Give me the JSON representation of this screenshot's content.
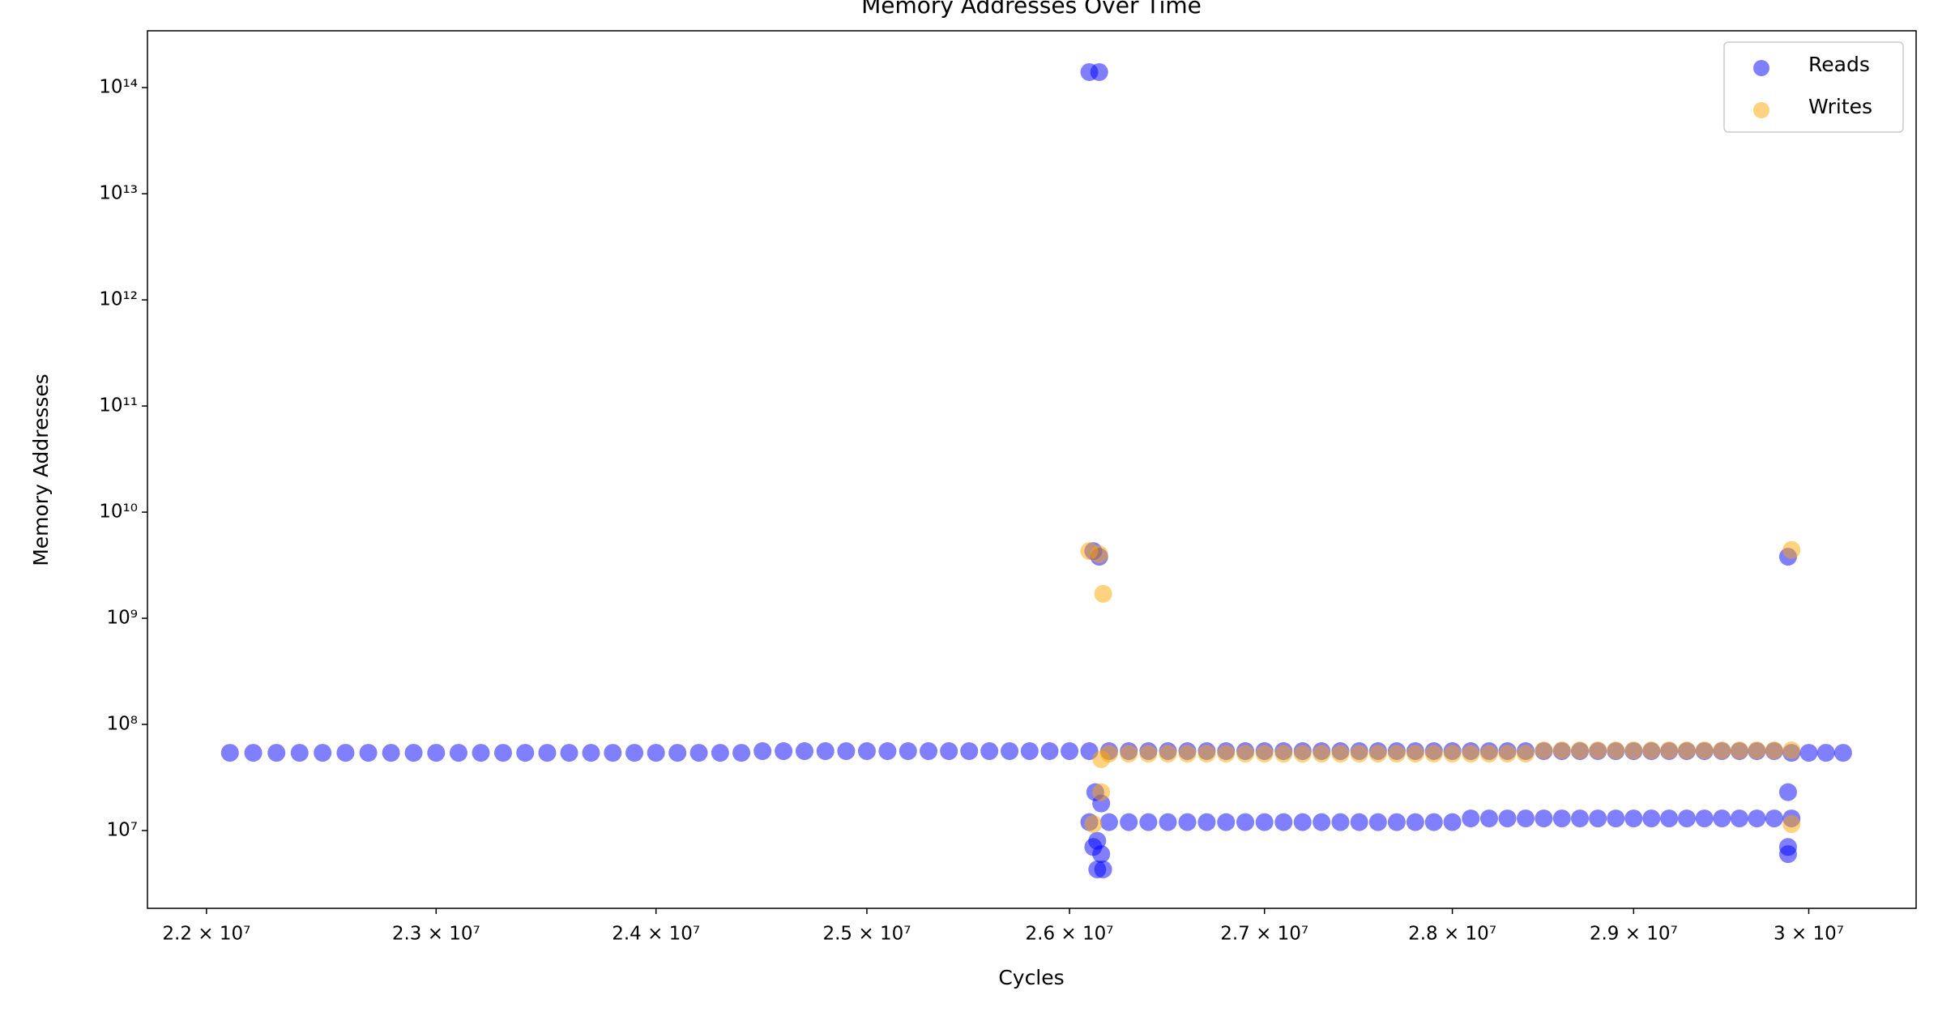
{
  "chart_data": {
    "type": "scatter",
    "title": "Memory Addresses Over Time",
    "xlabel": "Cycles",
    "ylabel": "Memory Addresses",
    "xscale": "log",
    "yscale": "log",
    "grid": false,
    "legend": "upper right",
    "alpha": 0.5,
    "xlim": [
      21750000,
      30630000
    ],
    "ylim": [
      1850000,
      343000000000000
    ],
    "xticks": [
      {
        "value": 22000000,
        "label": "2.2 × 10⁷"
      },
      {
        "value": 23000000,
        "label": "2.3 × 10⁷"
      },
      {
        "value": 24000000,
        "label": "2.4 × 10⁷"
      },
      {
        "value": 25000000,
        "label": "2.5 × 10⁷"
      },
      {
        "value": 26000000,
        "label": "2.6 × 10⁷"
      },
      {
        "value": 27000000,
        "label": "2.7 × 10⁷"
      },
      {
        "value": 28000000,
        "label": "2.8 × 10⁷"
      },
      {
        "value": 29000000,
        "label": "2.9 × 10⁷"
      },
      {
        "value": 30000000,
        "label": "3 × 10⁷"
      }
    ],
    "yticks": [
      {
        "value": 10000000,
        "label": "10⁷"
      },
      {
        "value": 100000000,
        "label": "10⁸"
      },
      {
        "value": 1000000000,
        "label": "10⁹"
      },
      {
        "value": 10000000000,
        "label": "10¹⁰"
      },
      {
        "value": 100000000000,
        "label": "10¹¹"
      },
      {
        "value": 1000000000000,
        "label": "10¹²"
      },
      {
        "value": 10000000000000,
        "label": "10¹³"
      },
      {
        "value": 100000000000000,
        "label": "10¹⁴"
      }
    ],
    "series": [
      {
        "name": "Reads",
        "color": "#0000ff",
        "x": [
          22100000,
          22200000,
          22300000,
          22400000,
          22500000,
          22600000,
          22700000,
          22800000,
          22900000,
          23000000,
          23100000,
          23200000,
          23300000,
          23400000,
          23500000,
          23600000,
          23700000,
          23800000,
          23900000,
          24000000,
          24100000,
          24200000,
          24300000,
          24400000,
          24500000,
          24600000,
          24700000,
          24800000,
          24900000,
          25000000,
          25100000,
          25200000,
          25300000,
          25400000,
          25500000,
          25600000,
          25700000,
          25800000,
          25900000,
          26000000,
          26100000,
          26200000,
          26300000,
          26400000,
          26500000,
          26600000,
          26700000,
          26800000,
          26900000,
          27000000,
          27100000,
          27200000,
          27300000,
          27400000,
          27500000,
          27600000,
          27700000,
          27800000,
          27900000,
          28000000,
          28100000,
          28200000,
          28300000,
          28400000,
          28500000,
          28600000,
          28700000,
          28800000,
          28900000,
          29000000,
          29100000,
          29200000,
          29300000,
          29400000,
          29500000,
          29600000,
          29700000,
          29800000,
          29900000,
          30000000,
          30100000,
          30200000,
          26100000,
          26200000,
          26300000,
          26400000,
          26500000,
          26600000,
          26700000,
          26800000,
          26900000,
          27000000,
          27100000,
          27200000,
          27300000,
          27400000,
          27500000,
          27600000,
          27700000,
          27800000,
          27900000,
          28000000,
          28100000,
          28200000,
          28300000,
          28400000,
          28500000,
          28600000,
          28700000,
          28800000,
          28900000,
          29000000,
          29100000,
          29200000,
          29300000,
          29400000,
          29500000,
          29600000,
          29700000,
          29800000,
          29900000,
          26100000,
          26150000,
          26120000,
          26150000,
          26130000,
          26160000,
          26120000,
          26160000,
          26140000,
          26170000,
          26140000,
          29880000,
          29880000,
          29880000,
          29880000
        ],
        "values": [
          54000000,
          54000000,
          54000000,
          54000000,
          54000000,
          54000000,
          54000000,
          54000000,
          54000000,
          54000000,
          54000000,
          54000000,
          54000000,
          54000000,
          54000000,
          54000000,
          54000000,
          54000000,
          54000000,
          54000000,
          54000000,
          54000000,
          54000000,
          54000000,
          56000000,
          56000000,
          56000000,
          56000000,
          56000000,
          56000000,
          56000000,
          56000000,
          56000000,
          56000000,
          56000000,
          56000000,
          56000000,
          56000000,
          56000000,
          56000000,
          56000000,
          56000000,
          56000000,
          56000000,
          56000000,
          56000000,
          56000000,
          56000000,
          56000000,
          56000000,
          56000000,
          56000000,
          56000000,
          56000000,
          56000000,
          56000000,
          56000000,
          56000000,
          56000000,
          56000000,
          56000000,
          56000000,
          56000000,
          56000000,
          56000000,
          56000000,
          56000000,
          56000000,
          56000000,
          56000000,
          56000000,
          56000000,
          56000000,
          56000000,
          56000000,
          56000000,
          56000000,
          56000000,
          54000000,
          54000000,
          54000000,
          54000000,
          12000000,
          12000000,
          12000000,
          12000000,
          12000000,
          12000000,
          12000000,
          12000000,
          12000000,
          12000000,
          12000000,
          12000000,
          12000000,
          12000000,
          12000000,
          12000000,
          12000000,
          12000000,
          12000000,
          12000000,
          13000000,
          13000000,
          13000000,
          13000000,
          13000000,
          13000000,
          13000000,
          13000000,
          13000000,
          13000000,
          13000000,
          13000000,
          13000000,
          13000000,
          13000000,
          13000000,
          13000000,
          13000000,
          13000000,
          140000000000000,
          140000000000000,
          4300000000,
          3800000000,
          23000000,
          18000000,
          7000000,
          6000000,
          4300000,
          4300000,
          8000000,
          3800000000,
          23000000,
          7000000,
          6000000
        ]
      },
      {
        "name": "Writes",
        "color": "#ffa500",
        "x": [
          26200000,
          26300000,
          26400000,
          26500000,
          26600000,
          26700000,
          26800000,
          26900000,
          27000000,
          27100000,
          27200000,
          27300000,
          27400000,
          27500000,
          27600000,
          27700000,
          27800000,
          27900000,
          28000000,
          28100000,
          28200000,
          28300000,
          28400000,
          28500000,
          28600000,
          28700000,
          28800000,
          28900000,
          29000000,
          29100000,
          29200000,
          29300000,
          29400000,
          29500000,
          29600000,
          29700000,
          29800000,
          29900000,
          26100000,
          26150000,
          26170000,
          26160000,
          26120000,
          26160000,
          29900000,
          29900000
        ],
        "values": [
          53000000,
          53000000,
          53000000,
          53000000,
          53000000,
          53000000,
          53000000,
          53000000,
          53000000,
          53000000,
          53000000,
          53000000,
          53000000,
          53000000,
          53000000,
          53000000,
          53000000,
          53000000,
          53000000,
          53000000,
          53000000,
          53000000,
          53000000,
          57000000,
          57000000,
          57000000,
          57000000,
          57000000,
          57000000,
          57000000,
          57000000,
          57000000,
          57000000,
          57000000,
          57000000,
          57000000,
          57000000,
          57000000,
          4300000000,
          4000000000,
          1700000000,
          23000000,
          11500000,
          47000000,
          4400000000,
          11500000
        ]
      }
    ]
  }
}
